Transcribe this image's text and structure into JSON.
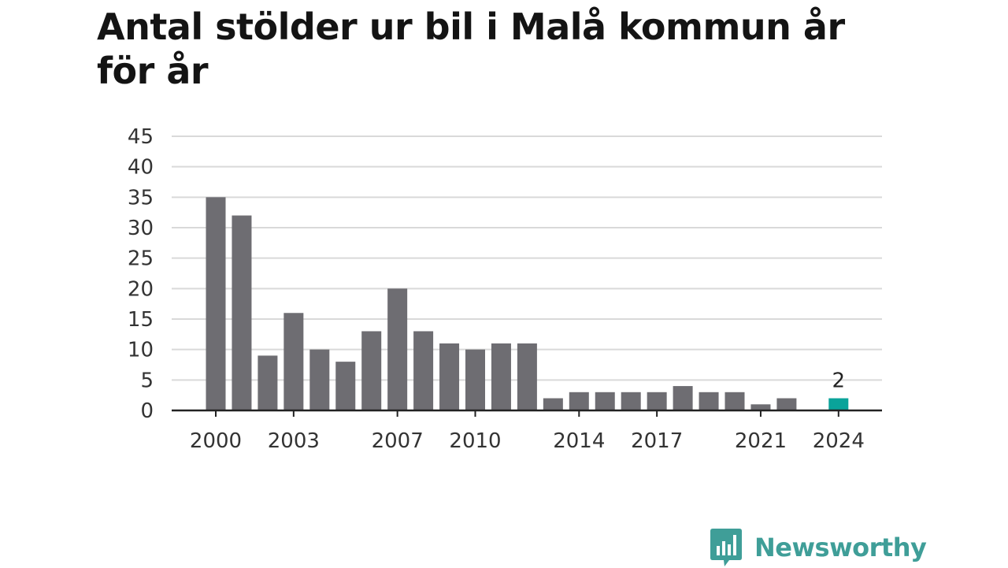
{
  "title": "Antal stölder ur bil i Malå kommun år för år",
  "brand": {
    "name": "Newsworthy",
    "icon": "newsworthy-logo-icon",
    "color": "#3f9e98"
  },
  "colors": {
    "bar": "#6e6d72",
    "highlight": "#0aa39a",
    "grid": "#d9d9d9",
    "axis": "#222222"
  },
  "chart_data": {
    "type": "bar",
    "title": "Antal stölder ur bil i Malå kommun år för år",
    "xlabel": "",
    "ylabel": "",
    "categories": [
      "2000",
      "2001",
      "2002",
      "2003",
      "2004",
      "2005",
      "2006",
      "2007",
      "2008",
      "2009",
      "2010",
      "2011",
      "2012",
      "2013",
      "2014",
      "2015",
      "2016",
      "2017",
      "2018",
      "2019",
      "2020",
      "2021",
      "2022",
      "2023",
      "2024"
    ],
    "values": [
      35,
      32,
      9,
      16,
      10,
      8,
      13,
      20,
      13,
      11,
      10,
      11,
      11,
      2,
      3,
      3,
      3,
      3,
      4,
      3,
      3,
      1,
      2,
      0,
      2
    ],
    "highlight_category": "2024",
    "data_labels": [
      {
        "category": "2024",
        "text": "2"
      }
    ],
    "x_tick_labels": [
      "2000",
      "2003",
      "2007",
      "2010",
      "2014",
      "2017",
      "2021",
      "2024"
    ],
    "y_ticks": [
      0,
      5,
      10,
      15,
      20,
      25,
      30,
      35,
      40,
      45
    ],
    "ylim": [
      0,
      45
    ],
    "grid": true,
    "legend": "none"
  }
}
